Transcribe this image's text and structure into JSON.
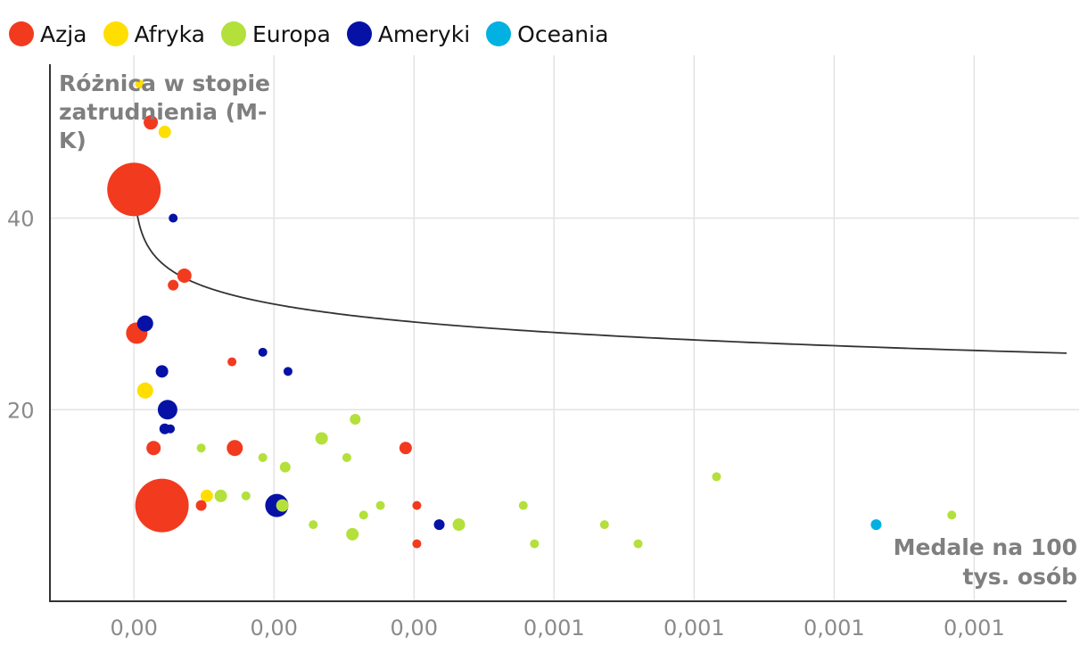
{
  "chart_data": {
    "type": "scatter",
    "legend": [
      {
        "name": "Azja",
        "color": "#f23a1f"
      },
      {
        "name": "Afryka",
        "color": "#ffde00"
      },
      {
        "name": "Europa",
        "color": "#b3e03b"
      },
      {
        "name": "Ameryki",
        "color": "#0612a6"
      },
      {
        "name": "Oceania",
        "color": "#00b1e1"
      }
    ],
    "ylabel_lines": [
      "Różnica w stopie",
      "zatrudnienia (M-",
      "K)"
    ],
    "xlabel_lines": [
      "Medale na 100",
      "tys. osób"
    ],
    "xlim": [
      -0.0003,
      0.00333
    ],
    "ylim": [
      0,
      57
    ],
    "x_ticks": [
      0,
      0.0005,
      0.001,
      0.0015,
      0.002,
      0.0025,
      0.003
    ],
    "x_tick_labels": [
      "0,00",
      "0,00",
      "0,00",
      "0,001",
      "0,001",
      "0,001",
      "0,001"
    ],
    "y_ticks": [
      20,
      40
    ],
    "y_tick_labels": [
      "20",
      "40"
    ],
    "trend": {
      "a": 0.001,
      "b": 10.35
    },
    "points": [
      {
        "group": "Afryka",
        "x": 2e-05,
        "y": 54,
        "r": 5
      },
      {
        "group": "Azja",
        "x": 6e-05,
        "y": 50,
        "r": 8
      },
      {
        "group": "Afryka",
        "x": 0.00011,
        "y": 49,
        "r": 7
      },
      {
        "group": "Azja",
        "x": 0.0,
        "y": 43,
        "r": 30
      },
      {
        "group": "Ameryki",
        "x": 0.00014,
        "y": 40,
        "r": 5
      },
      {
        "group": "Azja",
        "x": 0.00018,
        "y": 34,
        "r": 8
      },
      {
        "group": "Azja",
        "x": 0.00014,
        "y": 33,
        "r": 6
      },
      {
        "group": "Ameryki",
        "x": 4e-05,
        "y": 29,
        "r": 9
      },
      {
        "group": "Azja",
        "x": 1e-05,
        "y": 28,
        "r": 12
      },
      {
        "group": "Ameryki",
        "x": 0.00046,
        "y": 26,
        "r": 5
      },
      {
        "group": "Azja",
        "x": 0.00035,
        "y": 25,
        "r": 5
      },
      {
        "group": "Ameryki",
        "x": 0.00055,
        "y": 24,
        "r": 5
      },
      {
        "group": "Ameryki",
        "x": 0.0001,
        "y": 24,
        "r": 7
      },
      {
        "group": "Afryka",
        "x": 4e-05,
        "y": 22,
        "r": 9
      },
      {
        "group": "Ameryki",
        "x": 0.00012,
        "y": 20,
        "r": 11
      },
      {
        "group": "Ameryki",
        "x": 0.00011,
        "y": 18,
        "r": 6
      },
      {
        "group": "Ameryki",
        "x": 0.00013,
        "y": 18,
        "r": 5
      },
      {
        "group": "Europa",
        "x": 0.00079,
        "y": 19,
        "r": 6
      },
      {
        "group": "Europa",
        "x": 0.00067,
        "y": 17,
        "r": 7
      },
      {
        "group": "Azja",
        "x": 7e-05,
        "y": 16,
        "r": 8
      },
      {
        "group": "Europa",
        "x": 0.00024,
        "y": 16,
        "r": 5
      },
      {
        "group": "Azja",
        "x": 0.00036,
        "y": 16,
        "r": 9
      },
      {
        "group": "Azja",
        "x": 0.00097,
        "y": 16,
        "r": 7
      },
      {
        "group": "Europa",
        "x": 0.00046,
        "y": 15,
        "r": 5
      },
      {
        "group": "Europa",
        "x": 0.00076,
        "y": 15,
        "r": 5
      },
      {
        "group": "Europa",
        "x": 0.00054,
        "y": 14,
        "r": 6
      },
      {
        "group": "Europa",
        "x": 0.00208,
        "y": 13,
        "r": 5
      },
      {
        "group": "Europa",
        "x": 0.00292,
        "y": 9,
        "r": 5
      },
      {
        "group": "Azja",
        "x": 0.0001,
        "y": 10,
        "r": 30
      },
      {
        "group": "Afryka",
        "x": 0.00026,
        "y": 11,
        "r": 7
      },
      {
        "group": "Europa",
        "x": 0.00031,
        "y": 11,
        "r": 7
      },
      {
        "group": "Europa",
        "x": 0.0004,
        "y": 11,
        "r": 5
      },
      {
        "group": "Azja",
        "x": 0.00024,
        "y": 10,
        "r": 6
      },
      {
        "group": "Ameryki",
        "x": 0.00051,
        "y": 10,
        "r": 13
      },
      {
        "group": "Europa",
        "x": 0.00053,
        "y": 10,
        "r": 7
      },
      {
        "group": "Europa",
        "x": 0.00088,
        "y": 10,
        "r": 5
      },
      {
        "group": "Azja",
        "x": 0.00101,
        "y": 10,
        "r": 5
      },
      {
        "group": "Europa",
        "x": 0.00139,
        "y": 10,
        "r": 5
      },
      {
        "group": "Europa",
        "x": 0.00082,
        "y": 9,
        "r": 5
      },
      {
        "group": "Europa",
        "x": 0.00064,
        "y": 8,
        "r": 5
      },
      {
        "group": "Ameryki",
        "x": 0.00109,
        "y": 8,
        "r": 6
      },
      {
        "group": "Europa",
        "x": 0.00116,
        "y": 8,
        "r": 7
      },
      {
        "group": "Europa",
        "x": 0.00168,
        "y": 8,
        "r": 5
      },
      {
        "group": "Oceania",
        "x": 0.00265,
        "y": 8,
        "r": 6
      },
      {
        "group": "Europa",
        "x": 0.00078,
        "y": 7,
        "r": 7
      },
      {
        "group": "Azja",
        "x": 0.00101,
        "y": 6,
        "r": 5
      },
      {
        "group": "Europa",
        "x": 0.00143,
        "y": 6,
        "r": 5
      },
      {
        "group": "Europa",
        "x": 0.0018,
        "y": 6,
        "r": 5
      }
    ]
  }
}
